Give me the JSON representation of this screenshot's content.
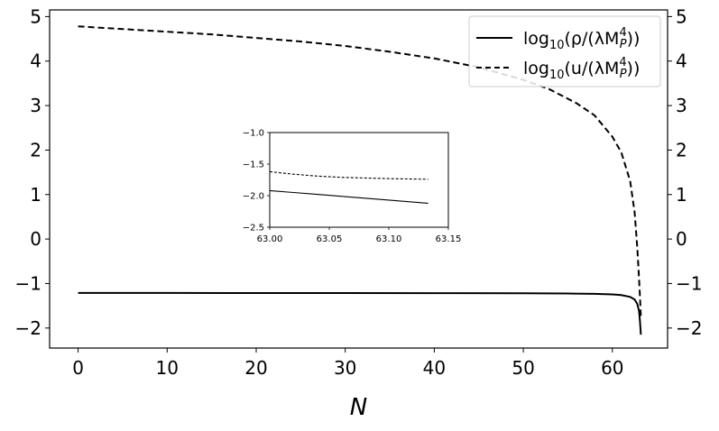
{
  "chart_data": [
    {
      "type": "line",
      "title": "",
      "xlabel": "N",
      "ylabel": "",
      "xlim": [
        -3.2,
        66.2
      ],
      "ylim": [
        -2.45,
        5.15
      ],
      "xticks": [
        0,
        10,
        20,
        30,
        40,
        50,
        60
      ],
      "yticks": [
        -2,
        -1,
        0,
        1,
        2,
        3,
        4,
        5
      ],
      "xtick_labels": [
        "0",
        "10",
        "20",
        "30",
        "40",
        "50",
        "60"
      ],
      "ytick_labels": [
        "−2",
        "−1",
        "0",
        "1",
        "2",
        "3",
        "4",
        "5"
      ],
      "right_axis_tick_labels": [
        "−2",
        "−1",
        "0",
        "1",
        "2",
        "3",
        "4",
        "5"
      ],
      "legend_position": "top-right",
      "grid": false,
      "series": [
        {
          "name": "log10(ρ/(λM_P^4))",
          "legend_base": "log",
          "legend_sub": "10",
          "legend_body": "(ρ/(λM",
          "legend_sup": "4",
          "legend_psub": "P",
          "legend_tail": "))",
          "style": "solid",
          "color": "#000000",
          "points": [
            [
              0,
              -1.21
            ],
            [
              10,
              -1.212
            ],
            [
              20,
              -1.213
            ],
            [
              30,
              -1.214
            ],
            [
              40,
              -1.216
            ],
            [
              50,
              -1.22
            ],
            [
              55,
              -1.225
            ],
            [
              58,
              -1.232
            ],
            [
              60,
              -1.245
            ],
            [
              61,
              -1.26
            ],
            [
              62,
              -1.3
            ],
            [
              62.5,
              -1.36
            ],
            [
              62.8,
              -1.46
            ],
            [
              63.0,
              -1.62
            ],
            [
              63.1,
              -1.85
            ],
            [
              63.2,
              -2.15
            ]
          ]
        },
        {
          "name": "log10(u/(λM_P^4))",
          "legend_base": "log",
          "legend_sub": "10",
          "legend_body": "(u/(λM",
          "legend_sup": "4",
          "legend_psub": "P",
          "legend_tail": "))",
          "style": "dashed",
          "color": "#000000",
          "points": [
            [
              0,
              4.78
            ],
            [
              5,
              4.72
            ],
            [
              10,
              4.66
            ],
            [
              15,
              4.6
            ],
            [
              20,
              4.52
            ],
            [
              25,
              4.44
            ],
            [
              30,
              4.34
            ],
            [
              35,
              4.21
            ],
            [
              40,
              4.06
            ],
            [
              45,
              3.86
            ],
            [
              50,
              3.58
            ],
            [
              53,
              3.36
            ],
            [
              56,
              3.05
            ],
            [
              58,
              2.78
            ],
            [
              60,
              2.3
            ],
            [
              61,
              1.95
            ],
            [
              62,
              1.3
            ],
            [
              62.5,
              0.6
            ],
            [
              62.8,
              -0.2
            ],
            [
              63.0,
              -0.9
            ],
            [
              63.1,
              -1.3
            ],
            [
              63.2,
              -1.75
            ]
          ]
        }
      ]
    },
    {
      "type": "line",
      "title": "",
      "xlabel": "",
      "ylabel": "",
      "xlim": [
        63.0,
        63.15
      ],
      "ylim": [
        -2.5,
        -1.0
      ],
      "xticks": [
        63.0,
        63.05,
        63.1,
        63.15
      ],
      "yticks": [
        -2.5,
        -2.0,
        -1.5,
        -1.0
      ],
      "xtick_labels": [
        "63.00",
        "63.05",
        "63.10",
        "63.15"
      ],
      "ytick_labels": [
        "−2.5",
        "−2.0",
        "−1.5",
        "−1.0"
      ],
      "grid": false,
      "series": [
        {
          "style": "solid",
          "color": "#000000",
          "points": [
            [
              63.0,
              -1.92
            ],
            [
              63.02,
              -1.95
            ],
            [
              63.04,
              -1.98
            ],
            [
              63.06,
              -2.01
            ],
            [
              63.08,
              -2.04
            ],
            [
              63.1,
              -2.07
            ],
            [
              63.133,
              -2.12
            ]
          ]
        },
        {
          "style": "dashed",
          "color": "#000000",
          "points": [
            [
              63.0,
              -1.62
            ],
            [
              63.02,
              -1.66
            ],
            [
              63.04,
              -1.69
            ],
            [
              63.06,
              -1.71
            ],
            [
              63.08,
              -1.72
            ],
            [
              63.1,
              -1.73
            ],
            [
              63.133,
              -1.74
            ]
          ]
        }
      ]
    }
  ]
}
